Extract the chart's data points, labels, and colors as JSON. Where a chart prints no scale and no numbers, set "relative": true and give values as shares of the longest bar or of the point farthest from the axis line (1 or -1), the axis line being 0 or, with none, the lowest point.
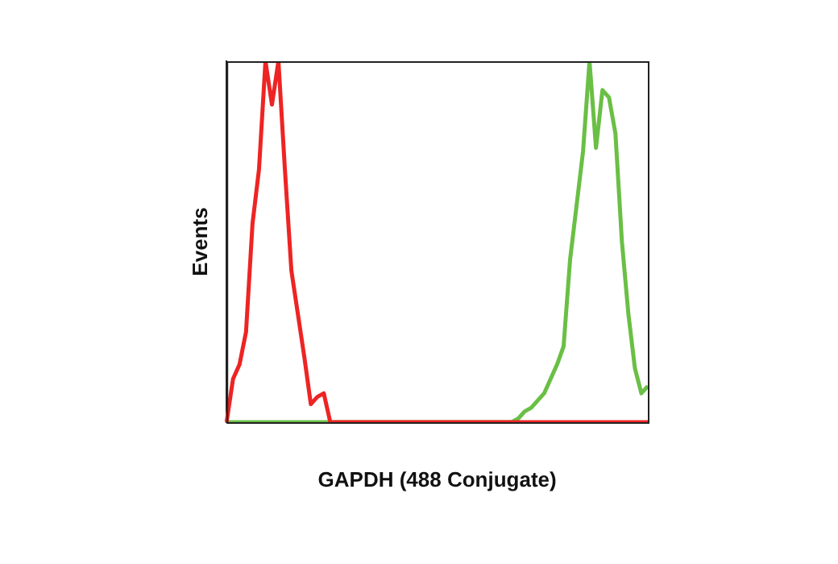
{
  "chart_data": {
    "type": "line",
    "xlabel": "GAPDH (488 Conjugate)",
    "ylabel": "Events",
    "relative": true,
    "grid": false,
    "legend": false,
    "marker": "none",
    "line_style": "solid",
    "categories": [
      null,
      null,
      null,
      null,
      null,
      null,
      null,
      null,
      null,
      null,
      null,
      null,
      null,
      null,
      null,
      null,
      null,
      null,
      null,
      null,
      null,
      null,
      null,
      null,
      null,
      null,
      null,
      null,
      null,
      null,
      null,
      null,
      null,
      null,
      null,
      null,
      null,
      null,
      null,
      null,
      null,
      null,
      null,
      null,
      null,
      null,
      null,
      null,
      null,
      null,
      null,
      null,
      null,
      null,
      null,
      null,
      null,
      null,
      null,
      null,
      null,
      null,
      null,
      null,
      null,
      null
    ],
    "series": [
      {
        "color": "#ee2424",
        "values": [
          0,
          0.12,
          0.16,
          0.25,
          0.55,
          0.7,
          1,
          0.88,
          1,
          0.7,
          0.42,
          0.3,
          0.18,
          0.05,
          0.07,
          0.08,
          0,
          0,
          0,
          0,
          0,
          0,
          0,
          0,
          0,
          0,
          0,
          0,
          0,
          0,
          0,
          0,
          0,
          0,
          0,
          0,
          0,
          0,
          0,
          0,
          0,
          0,
          0,
          0,
          0,
          0,
          0,
          0,
          0,
          0,
          0,
          0,
          0,
          0,
          0,
          0,
          0,
          0,
          0,
          0,
          0,
          0,
          0,
          0,
          0,
          0
        ]
      },
      {
        "color": "#6abf45",
        "values": [
          0,
          0,
          0,
          0,
          0,
          0,
          0,
          0,
          0,
          0,
          0,
          0,
          0,
          0,
          0,
          0,
          0,
          0,
          0,
          0,
          0,
          0,
          0,
          0,
          0,
          0,
          0,
          0,
          0,
          0,
          0,
          0,
          0,
          0,
          0,
          0,
          0,
          0,
          0,
          0,
          0,
          0,
          0,
          0,
          0,
          0.01,
          0.03,
          0.04,
          0.06,
          0.08,
          0.12,
          0.16,
          0.21,
          0.45,
          0.6,
          0.75,
          1,
          0.76,
          0.92,
          0.9,
          0.8,
          0.5,
          0.3,
          0.15,
          0.08,
          0.1
        ]
      }
    ]
  }
}
